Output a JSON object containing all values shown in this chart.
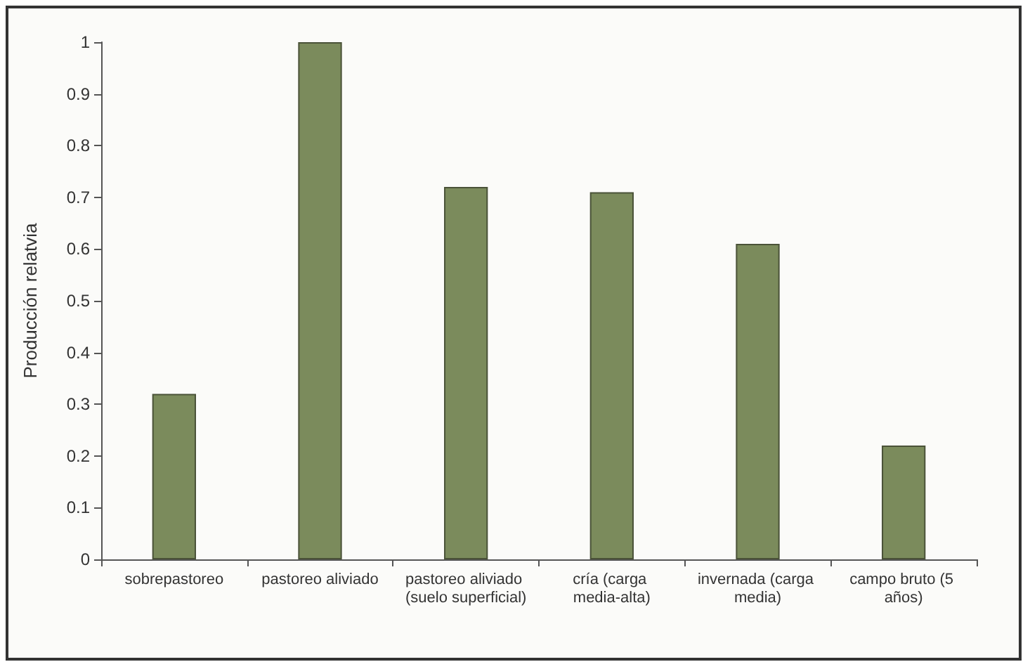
{
  "chart_data": {
    "type": "bar",
    "ylabel": "Producción relatvia",
    "categories": [
      "sobrepastoreo",
      "pastoreo aliviado",
      "pastoreo aliviado (suelo superficial)",
      "cría (carga media-alta)",
      "invernada (carga media)",
      "campo bruto (5 años)"
    ],
    "values": [
      0.32,
      1,
      0.72,
      0.71,
      0.61,
      0.22
    ],
    "color": "#7b8b5c",
    "ylim": [
      0,
      1
    ],
    "yticks": [
      0,
      0.1,
      0.2,
      0.3,
      0.4,
      0.5,
      0.6,
      0.7,
      0.8,
      0.9,
      1
    ],
    "grid": false
  }
}
